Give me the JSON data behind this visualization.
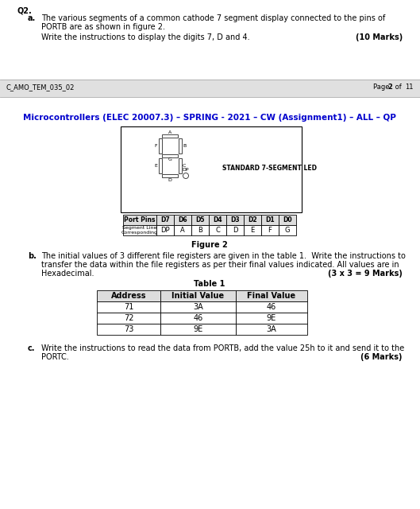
{
  "page_header_left": "C_AMO_TEM_035_02",
  "page_header_right_pre": "Page ",
  "page_header_right_bold": "2",
  "page_header_right_post": " of 11",
  "title": "Microcontrollers (ELEC 20007.3) – SPRING - 2021 – CW (Assignment1) – ALL – QP",
  "title_color": "#0000CD",
  "q2_label": "Q2.",
  "part_a_label": "a.",
  "part_a_text1": "The various segments of a common cathode 7 segment display connected to the pins of",
  "part_a_text2": "PORTB are as shown in figure 2.",
  "part_a_text3": "Write the instructions to display the digits 7, D and 4.",
  "part_a_marks": "(10 Marks)",
  "figure_label": "Figure 2",
  "seg_led_label": "STANDARD 7-SEGMENT LED",
  "table_port_pins": [
    "D7",
    "D6",
    "D5",
    "D4",
    "D3",
    "D2",
    "D1",
    "D0"
  ],
  "table_seg_lines": [
    "DP",
    "A",
    "B",
    "C",
    "D",
    "E",
    "F",
    "G"
  ],
  "table_col1": "Port Pins",
  "table_col2_line1": "Corresponding",
  "table_col2_line2": "Segment Line",
  "part_b_label": "b.",
  "part_b_text1": "The initial values of 3 different file registers are given in the table 1.  Write the instructions to",
  "part_b_text2": "transfer the data within the file registers as per their final values indicated. All values are in",
  "part_b_text3": "Hexadecimal.",
  "part_b_marks": "(3 x 3 = 9 Marks)",
  "table1_title": "Table 1",
  "table1_headers": [
    "Address",
    "Initial Value",
    "Final Value"
  ],
  "table1_rows": [
    [
      "71",
      "3A",
      "46"
    ],
    [
      "72",
      "46",
      "9E"
    ],
    [
      "73",
      "9E",
      "3A"
    ]
  ],
  "part_c_label": "c.",
  "part_c_text1": "Write the instructions to read the data from PORTB, add the value 25h to it and send it to the",
  "part_c_text2": "PORTC.",
  "part_c_marks": "(6 Marks)",
  "bg_color": "#FFFFFF",
  "header_band_color": "#E0E0E0",
  "header_band_color2": "#C8C8C8"
}
